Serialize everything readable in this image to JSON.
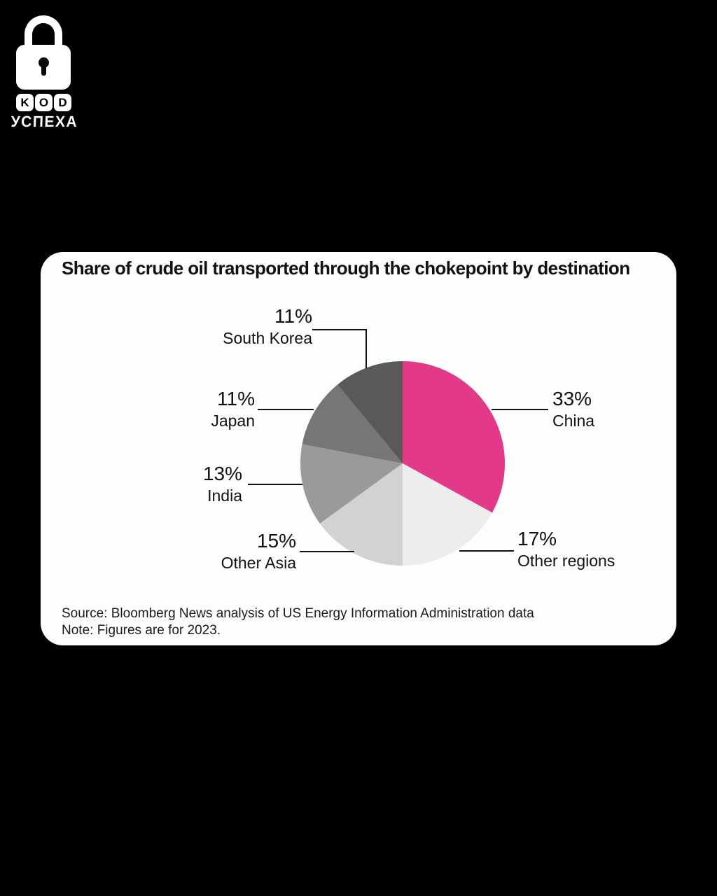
{
  "logo": {
    "letters": [
      "K",
      "O",
      "D"
    ],
    "subtitle": "УСПЕХА"
  },
  "chart_data": {
    "type": "pie",
    "title": "Share of crude oil transported through the chokepoint by destination",
    "slices": [
      {
        "name": "China",
        "value": 33,
        "pct": "33%",
        "color": "#E23A88"
      },
      {
        "name": "Other regions",
        "value": 17,
        "pct": "17%",
        "color": "#EDEDED"
      },
      {
        "name": "Other Asia",
        "value": 15,
        "pct": "15%",
        "color": "#D2D2D2"
      },
      {
        "name": "India",
        "value": 13,
        "pct": "13%",
        "color": "#9A9A9A"
      },
      {
        "name": "Japan",
        "value": 11,
        "pct": "11%",
        "color": "#767676"
      },
      {
        "name": "South Korea",
        "value": 11,
        "pct": "11%",
        "color": "#595959"
      }
    ],
    "start_angle_deg": -90,
    "direction": "clockwise",
    "legend_position": "callouts",
    "source": "Source: Bloomberg News analysis of US Energy Information Administration data",
    "note": "Note: Figures are for 2023."
  },
  "colors": {
    "background": "#000000",
    "card": "#FDFDFB",
    "text": "#1A1A1A",
    "accent": "#E23A88"
  }
}
